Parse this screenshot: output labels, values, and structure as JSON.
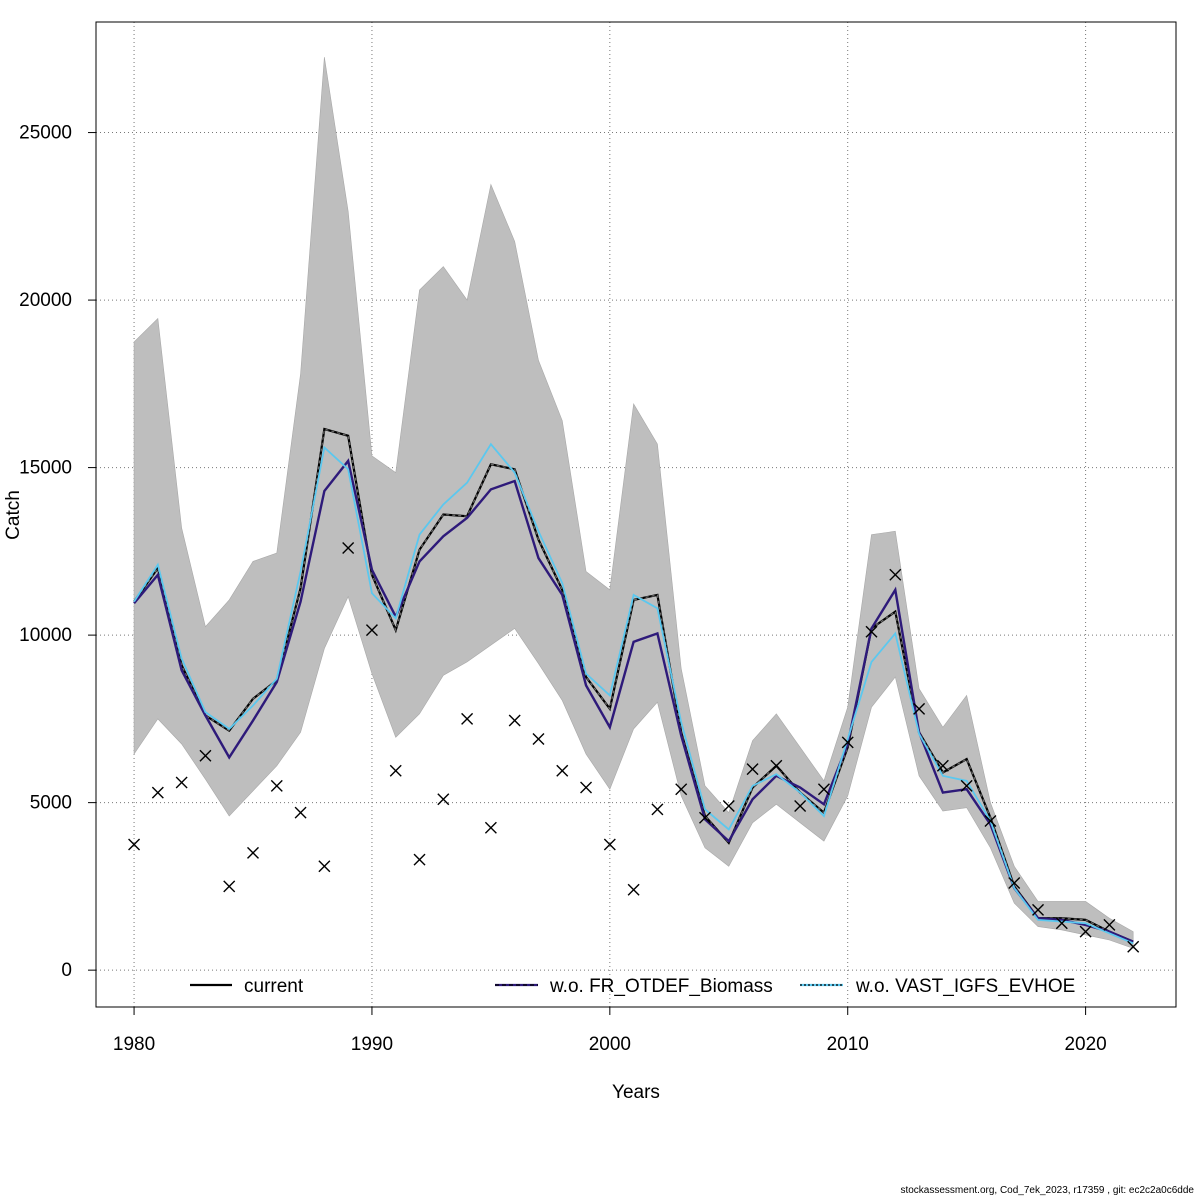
{
  "chart_data": {
    "type": "line",
    "xlabel": "Years",
    "ylabel": "Catch",
    "xlim": [
      1978.4,
      2023.8
    ],
    "ylim": [
      -1100,
      28300
    ],
    "x_ticks": [
      1980,
      1990,
      2000,
      2010,
      2020
    ],
    "y_ticks": [
      0,
      5000,
      10000,
      15000,
      20000,
      25000
    ],
    "grid": true,
    "legend_position": "bottom",
    "x": [
      1980,
      1981,
      1982,
      1983,
      1984,
      1985,
      1986,
      1987,
      1988,
      1989,
      1990,
      1991,
      1992,
      1993,
      1994,
      1995,
      1996,
      1997,
      1998,
      1999,
      2000,
      2001,
      2002,
      2003,
      2004,
      2005,
      2006,
      2007,
      2008,
      2009,
      2010,
      2011,
      2012,
      2013,
      2014,
      2015,
      2016,
      2017,
      2018,
      2019,
      2020,
      2021,
      2022
    ],
    "band": {
      "upper": [
        18750,
        19450,
        13200,
        10250,
        11050,
        12200,
        12450,
        17800,
        27250,
        22650,
        15350,
        14850,
        20300,
        21000,
        20000,
        23450,
        21750,
        18200,
        16400,
        11900,
        11350,
        16900,
        15700,
        9000,
        5500,
        4700,
        6850,
        7650,
        6650,
        5650,
        7850,
        13000,
        13100,
        8400,
        7250,
        8200,
        5000,
        3100,
        2050,
        2050,
        2050,
        1550,
        1150
      ],
      "lower": [
        6450,
        7500,
        6750,
        5700,
        4600,
        5350,
        6100,
        7100,
        9600,
        11150,
        8850,
        6950,
        7650,
        8800,
        9200,
        9700,
        10200,
        9150,
        8050,
        6450,
        5400,
        7200,
        8000,
        5200,
        3650,
        3100,
        4400,
        4950,
        4400,
        3850,
        5200,
        7850,
        8750,
        5800,
        4750,
        4850,
        3650,
        2000,
        1300,
        1200,
        1050,
        900,
        650
      ]
    },
    "series": [
      {
        "name": "current",
        "color": "#000000",
        "values": [
          11000,
          12000,
          9100,
          7600,
          7150,
          8100,
          8650,
          11400,
          16150,
          15950,
          11800,
          10150,
          12550,
          13600,
          13550,
          15100,
          14950,
          12850,
          11350,
          8750,
          7800,
          11050,
          11200,
          7100,
          4600,
          3800,
          5450,
          6100,
          5300,
          4700,
          6650,
          10200,
          10700,
          7100,
          5900,
          6300,
          4550,
          2500,
          1550,
          1550,
          1500,
          1150,
          850
        ]
      },
      {
        "name": "w.o. FR_OTDEF_Biomass",
        "color": "#2e1a7a",
        "values": [
          10950,
          11800,
          8950,
          7600,
          6350,
          7450,
          8600,
          11000,
          14300,
          15200,
          11950,
          10550,
          12200,
          12950,
          13500,
          14350,
          14600,
          12300,
          11200,
          8500,
          7250,
          9800,
          10050,
          7000,
          4500,
          3850,
          5100,
          5800,
          5450,
          4950,
          6750,
          10200,
          11350,
          7100,
          5300,
          5400,
          4350,
          2450,
          1550,
          1500,
          1350,
          1150,
          850
        ]
      },
      {
        "name": "w.o. VAST_IGFS_EVHOE",
        "color": "#5bc8ef",
        "values": [
          11000,
          12100,
          9300,
          7700,
          7200,
          7900,
          8700,
          11900,
          15600,
          14950,
          11250,
          10500,
          13000,
          13900,
          14550,
          15700,
          14850,
          13100,
          11550,
          8850,
          8200,
          11200,
          10800,
          7400,
          4800,
          4200,
          5500,
          5850,
          5300,
          4600,
          6900,
          9200,
          10050,
          7050,
          5800,
          5650,
          4450,
          2450,
          1500,
          1450,
          1400,
          1100,
          800
        ]
      }
    ],
    "observed": [
      3750,
      5300,
      5600,
      6400,
      2500,
      3500,
      5500,
      4700,
      3100,
      12600,
      10150,
      5950,
      3300,
      5100,
      7500,
      4250,
      7450,
      6900,
      5950,
      5450,
      3750,
      2400,
      4800,
      5400,
      4550,
      4900,
      6000,
      6100,
      4900,
      5400,
      6800,
      10100,
      11800,
      7800,
      6100,
      5500,
      4450,
      2600,
      1800,
      1400,
      1150,
      1350,
      700
    ]
  },
  "footer": "stockassessment.org, Cod_7ek_2023, r17359 , git: ec2c2a0c6dde"
}
